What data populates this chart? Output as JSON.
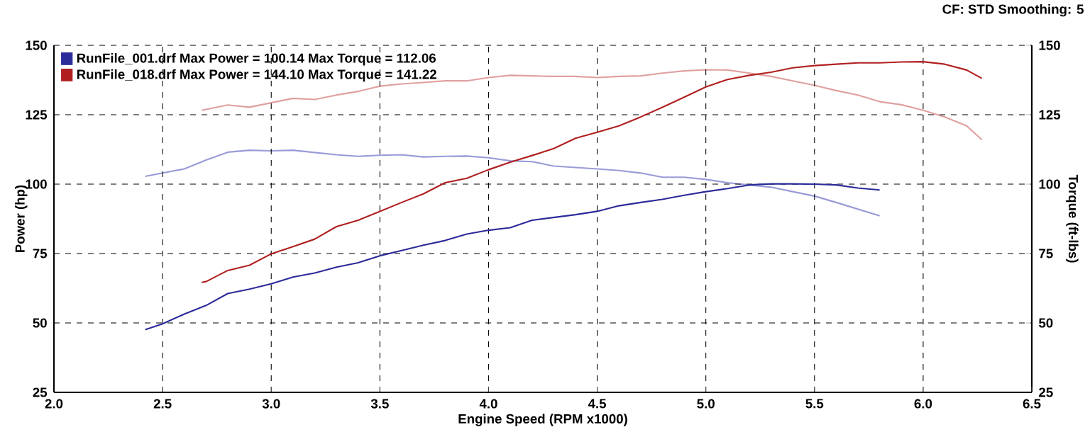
{
  "chart_data": {
    "type": "line",
    "xlabel": "Engine Speed (RPM x1000)",
    "ylabel": "Power (hp)",
    "y2label": "Torque (ft-lbs)",
    "annotations": [
      "CF: STD  Smoothing: 5"
    ],
    "xlim": [
      2.0,
      6.5
    ],
    "xticks": [
      {
        "value": 2,
        "label": "2.0"
      },
      {
        "value": 2.5,
        "label": "2.5"
      },
      {
        "value": 3,
        "label": "3.0"
      },
      {
        "value": 3.5,
        "label": "3.5"
      },
      {
        "value": 4,
        "label": "4.0"
      },
      {
        "value": 4.5,
        "label": "4.5"
      },
      {
        "value": 5,
        "label": "5.0"
      },
      {
        "value": 5.5,
        "label": "5.5"
      },
      {
        "value": 6,
        "label": "6.0"
      },
      {
        "value": 6.5,
        "label": "6.5"
      }
    ],
    "ylim": [
      25,
      150
    ],
    "yticks": [
      25,
      50,
      75,
      100,
      125,
      150
    ],
    "y2lim": [
      25,
      150
    ],
    "y2ticks": [
      25,
      50,
      75,
      100,
      125,
      150
    ],
    "grid": true,
    "legend": "top left",
    "series": [
      {
        "name": "RunFile_001.drf Max Power = 100.14  Max Torque = 112.06",
        "color": "#2b2b9a",
        "x": [
          2.42,
          2.5,
          2.6,
          2.7,
          2.8,
          2.9,
          3.0,
          3.1,
          3.2,
          3.3,
          3.4,
          3.5,
          3.6,
          3.7,
          3.8,
          3.9,
          4.0,
          4.1,
          4.2,
          4.3,
          4.4,
          4.5,
          4.6,
          4.7,
          4.8,
          4.9,
          5.0,
          5.1,
          5.2,
          5.3,
          5.4,
          5.5,
          5.6,
          5.7,
          5.8
        ],
        "values": [
          47.6,
          49.7,
          53.2,
          56.3,
          60.6,
          62.2,
          64.1,
          66.5,
          68.0,
          70.1,
          71.7,
          74.2,
          76.1,
          78.0,
          79.7,
          82.0,
          83.4,
          84.3,
          87.0,
          88.0,
          89.0,
          90.2,
          92.2,
          93.4,
          94.5,
          96.0,
          97.3,
          98.4,
          99.7,
          100.1,
          100.1,
          100.0,
          99.7,
          98.6,
          97.9
        ]
      },
      {
        "name": "RunFile_018.drf Max Power = 144.10  Max Torque = 141.22",
        "color": "#b02020",
        "x": [
          2.68,
          2.7,
          2.8,
          2.9,
          3.0,
          3.1,
          3.2,
          3.3,
          3.4,
          3.5,
          3.6,
          3.7,
          3.8,
          3.9,
          4.0,
          4.1,
          4.2,
          4.3,
          4.4,
          4.5,
          4.6,
          4.7,
          4.8,
          4.9,
          5.0,
          5.1,
          5.2,
          5.3,
          5.4,
          5.5,
          5.6,
          5.7,
          5.8,
          5.9,
          6.0,
          6.1,
          6.2,
          6.27
        ],
        "values": [
          64.6,
          64.9,
          68.9,
          70.8,
          74.9,
          77.5,
          80.2,
          84.7,
          87.0,
          90.2,
          93.4,
          96.5,
          100.5,
          102.1,
          105.2,
          107.9,
          110.3,
          112.8,
          116.5,
          118.7,
          121.0,
          124.2,
          127.7,
          131.3,
          135.0,
          137.7,
          139.2,
          140.3,
          141.9,
          142.7,
          143.2,
          143.7,
          143.7,
          144.0,
          144.1,
          143.2,
          141.1,
          138.1
        ]
      },
      {
        "axis": "y2",
        "color": "#9a9ad8",
        "x": [
          2.42,
          2.5,
          2.6,
          2.7,
          2.8,
          2.9,
          3.0,
          3.1,
          3.2,
          3.3,
          3.4,
          3.5,
          3.6,
          3.7,
          3.8,
          3.9,
          4.0,
          4.1,
          4.2,
          4.3,
          4.4,
          4.5,
          4.6,
          4.7,
          4.8,
          4.9,
          5.0,
          5.1,
          5.2,
          5.3,
          5.4,
          5.5,
          5.6,
          5.7,
          5.8
        ],
        "values": [
          102.8,
          104.0,
          105.5,
          108.7,
          111.5,
          112.2,
          112.0,
          112.2,
          111.4,
          110.6,
          110.0,
          110.4,
          110.6,
          109.8,
          110.0,
          110.1,
          109.5,
          108.4,
          108.1,
          106.5,
          106.0,
          105.5,
          104.9,
          104.0,
          102.5,
          102.5,
          101.7,
          100.5,
          99.7,
          98.9,
          97.3,
          95.7,
          93.4,
          91.0,
          88.6
        ]
      },
      {
        "axis": "y2",
        "color": "#e0a0a0",
        "x": [
          2.68,
          2.8,
          2.9,
          3.0,
          3.1,
          3.2,
          3.3,
          3.4,
          3.5,
          3.6,
          3.7,
          3.8,
          3.9,
          4.0,
          4.1,
          4.2,
          4.3,
          4.4,
          4.5,
          4.6,
          4.7,
          4.8,
          4.9,
          5.0,
          5.1,
          5.2,
          5.3,
          5.4,
          5.5,
          5.6,
          5.7,
          5.8,
          5.9,
          6.0,
          6.1,
          6.2,
          6.27
        ],
        "values": [
          126.6,
          128.5,
          127.7,
          129.3,
          130.9,
          130.5,
          132.1,
          133.4,
          135.3,
          136.1,
          136.6,
          137.2,
          137.2,
          138.4,
          139.2,
          139.0,
          138.8,
          138.8,
          138.4,
          138.8,
          139.0,
          140.0,
          140.8,
          141.2,
          141.1,
          140.0,
          138.8,
          137.2,
          135.6,
          133.7,
          132.1,
          129.7,
          128.6,
          126.6,
          124.2,
          121.0,
          116.0
        ]
      }
    ]
  }
}
